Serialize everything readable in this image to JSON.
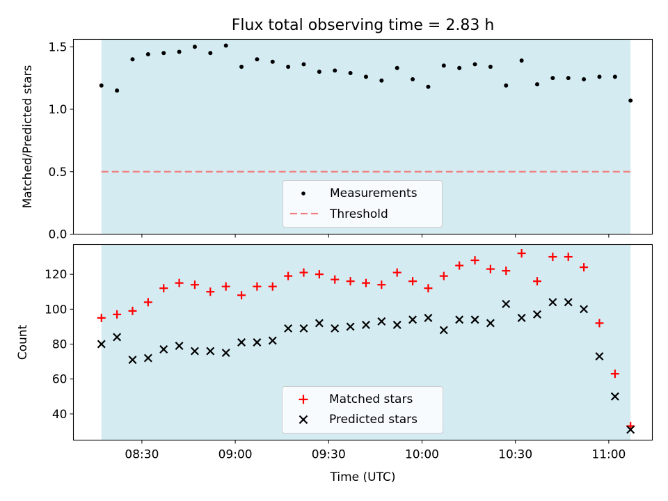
{
  "chart_data": [
    {
      "type": "scatter",
      "title": "Flux total observing time = 2.83 h",
      "xlabel": "",
      "ylabel": "Matched/Predicted stars",
      "ylim": [
        0,
        1.56
      ],
      "yticks": [
        "0.0",
        "0.5",
        "1.0",
        "1.5"
      ],
      "grid": false,
      "legend_position": "lower center",
      "x": [
        "08:17",
        "08:22",
        "08:27",
        "08:32",
        "08:37",
        "08:42",
        "08:47",
        "08:52",
        "08:57",
        "09:02",
        "09:07",
        "09:12",
        "09:17",
        "09:22",
        "09:27",
        "09:32",
        "09:37",
        "09:42",
        "09:47",
        "09:52",
        "09:57",
        "10:02",
        "10:07",
        "10:12",
        "10:17",
        "10:22",
        "10:27",
        "10:32",
        "10:37",
        "10:42",
        "10:47",
        "10:52",
        "10:57",
        "11:02",
        "11:07"
      ],
      "series": [
        {
          "name": "Measurements",
          "kind": "scatter",
          "marker": "dot",
          "color": "#000000",
          "values": [
            1.19,
            1.15,
            1.4,
            1.44,
            1.45,
            1.46,
            1.5,
            1.45,
            1.51,
            1.34,
            1.4,
            1.38,
            1.34,
            1.36,
            1.3,
            1.31,
            1.29,
            1.26,
            1.23,
            1.33,
            1.24,
            1.18,
            1.35,
            1.33,
            1.36,
            1.34,
            1.19,
            1.39,
            1.2,
            1.25,
            1.25,
            1.24,
            1.26,
            1.26,
            1.07
          ]
        },
        {
          "name": "Threshold",
          "kind": "hline",
          "style": "dashed",
          "color": "#f08080",
          "value": 0.5
        }
      ],
      "shaded_span": {
        "from": "08:17",
        "to": "11:07",
        "color": "#add8e6"
      }
    },
    {
      "type": "scatter",
      "title": "",
      "xlabel": "Time (UTC)",
      "ylabel": "Count",
      "ylim": [
        25,
        137
      ],
      "yticks": [
        "40",
        "60",
        "80",
        "100",
        "120"
      ],
      "xlim": [
        "08:08",
        "11:14"
      ],
      "xticks": [
        "08:30",
        "09:00",
        "09:30",
        "10:00",
        "10:30",
        "11:00"
      ],
      "grid": false,
      "legend_position": "lower center",
      "x": [
        "08:17",
        "08:22",
        "08:27",
        "08:32",
        "08:37",
        "08:42",
        "08:47",
        "08:52",
        "08:57",
        "09:02",
        "09:07",
        "09:12",
        "09:17",
        "09:22",
        "09:27",
        "09:32",
        "09:37",
        "09:42",
        "09:47",
        "09:52",
        "09:57",
        "10:02",
        "10:07",
        "10:12",
        "10:17",
        "10:22",
        "10:27",
        "10:32",
        "10:37",
        "10:42",
        "10:47",
        "10:52",
        "10:57",
        "11:02",
        "11:07"
      ],
      "series": [
        {
          "name": "Matched stars",
          "marker": "plus",
          "color": "#ff0000",
          "values": [
            95,
            97,
            99,
            104,
            112,
            115,
            114,
            110,
            113,
            108,
            113,
            113,
            119,
            121,
            120,
            117,
            116,
            115,
            114,
            121,
            116,
            112,
            119,
            125,
            128,
            123,
            122,
            132,
            116,
            130,
            130,
            124,
            92,
            63,
            33
          ]
        },
        {
          "name": "Predicted stars",
          "marker": "x",
          "color": "#000000",
          "values": [
            80,
            84,
            71,
            72,
            77,
            79,
            76,
            76,
            75,
            81,
            81,
            82,
            89,
            89,
            92,
            89,
            90,
            91,
            93,
            91,
            94,
            95,
            88,
            94,
            94,
            92,
            103,
            95,
            97,
            104,
            104,
            100,
            73,
            50,
            31
          ]
        }
      ],
      "shaded_span": {
        "from": "08:17",
        "to": "11:07",
        "color": "#add8e6"
      }
    }
  ]
}
